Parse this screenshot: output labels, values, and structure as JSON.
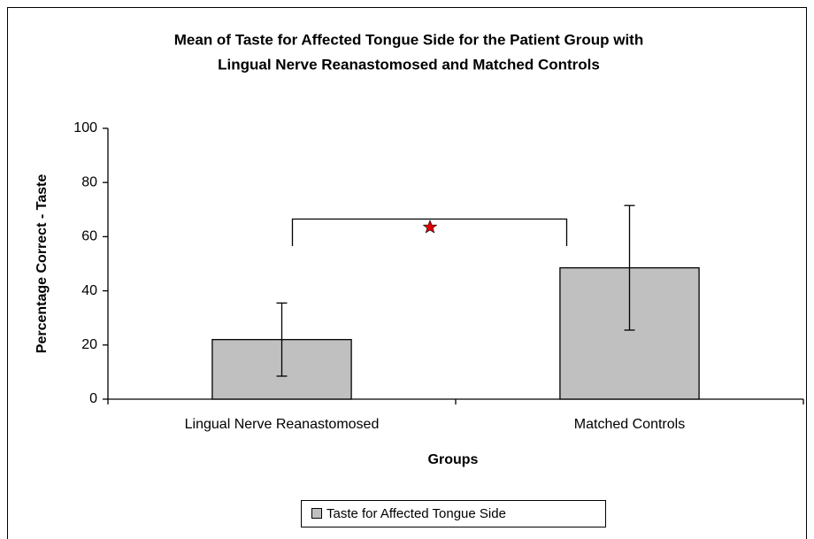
{
  "chart_data": {
    "type": "bar",
    "title": [
      "Mean of Taste for Affected Tongue Side for the Patient Group with",
      "Lingual Nerve Reanastomosed and Matched Controls"
    ],
    "x_label": "Groups",
    "y_label": "Percentage Correct - Taste",
    "categories": [
      "Lingual Nerve Reanastomosed",
      "Matched Controls"
    ],
    "series": [
      {
        "name": "Taste for Affected Tongue Side",
        "color": "#c0c0c0",
        "values": [
          22,
          48.5
        ],
        "errors": [
          13.5,
          23
        ]
      }
    ],
    "ylim": [
      0,
      100
    ],
    "yticks": [
      0,
      20,
      40,
      60,
      80,
      100
    ],
    "grid": false,
    "legend": "bottom"
  }
}
